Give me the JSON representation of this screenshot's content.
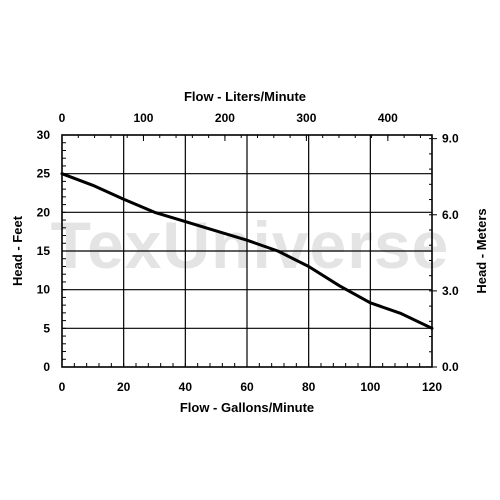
{
  "watermark": "TexUniverse",
  "chart_data": {
    "type": "line",
    "xlabel": "Flow - Gallons/Minute",
    "ylabel": "Head - Feet",
    "x2label": "Flow - Liters/Minute",
    "y2label": "Head - Meters",
    "xlim": [
      0,
      120
    ],
    "ylim": [
      0,
      30
    ],
    "x2lim": [
      0,
      454.2
    ],
    "y2lim": [
      0,
      9.144
    ],
    "x_ticks": [
      0,
      20,
      40,
      60,
      80,
      100,
      120
    ],
    "y_ticks": [
      0,
      5,
      10,
      15,
      20,
      25,
      30
    ],
    "x2_ticks": [
      0,
      100,
      200,
      300,
      400
    ],
    "x2_tick_labels": [
      "0",
      "100",
      "200",
      "300",
      "400"
    ],
    "y2_ticks": [
      0,
      3,
      6,
      9
    ],
    "y2_tick_labels": [
      "0.0",
      "3.0",
      "6.0",
      "9.0"
    ],
    "grid": true,
    "series": [
      {
        "x": [
          0,
          10,
          20,
          30,
          40,
          50,
          60,
          70,
          80,
          90,
          100,
          110,
          120
        ],
        "y": [
          25,
          23.5,
          21.7,
          20,
          18.8,
          17.6,
          16.4,
          15,
          13,
          10.5,
          8.3,
          6.9,
          5
        ]
      }
    ]
  }
}
